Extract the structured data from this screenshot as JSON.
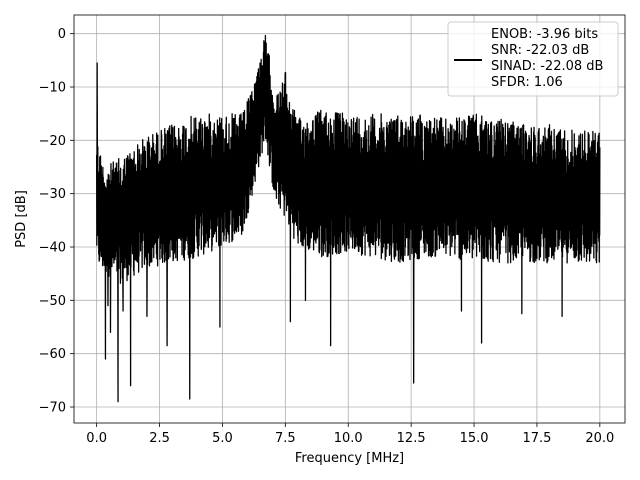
{
  "chart_data": {
    "type": "line",
    "xlabel": "Frequency [MHz]",
    "ylabel": "PSD [dB]",
    "xlim": [
      -0.9,
      21.0
    ],
    "ylim": [
      -73,
      3.5
    ],
    "x_ticks": [
      0.0,
      2.5,
      5.0,
      7.5,
      10.0,
      12.5,
      15.0,
      17.5,
      20.0
    ],
    "x_tick_labels": [
      "0.0",
      "2.5",
      "5.0",
      "7.5",
      "10.0",
      "12.5",
      "15.0",
      "17.5",
      "20.0"
    ],
    "y_ticks": [
      0,
      -10,
      -20,
      -30,
      -40,
      -50,
      -60,
      -70
    ],
    "y_tick_labels": [
      "0",
      "−10",
      "−20",
      "−30",
      "−40",
      "−50",
      "−60",
      "−70"
    ],
    "grid": true,
    "legend_position": "top-right",
    "series": [
      {
        "name": "ENOB: -3.96 bits\nSNR: -22.03 dB\nSINAD: -22.08 dB\nSFDR: 1.06",
        "color": "#000000",
        "envelope": {
          "x": [
            0.0,
            0.05,
            0.3,
            1.0,
            2.0,
            3.0,
            4.0,
            5.0,
            5.8,
            6.2,
            6.5,
            6.7,
            6.9,
            7.1,
            7.3,
            7.5,
            7.7,
            8.0,
            9.0,
            10.0,
            11.0,
            12.0,
            13.0,
            14.0,
            15.0,
            16.0,
            17.0,
            18.0,
            19.0,
            20.0
          ],
          "upper": [
            -17,
            -20,
            -25,
            -23,
            -19,
            -17,
            -15,
            -15,
            -15,
            -10,
            -4,
            0,
            -5,
            -12,
            -10,
            -7,
            -12,
            -16,
            -14,
            -15,
            -15,
            -15,
            -15,
            -16,
            -15,
            -16,
            -17,
            -17,
            -18,
            -18
          ],
          "lower": [
            -42,
            -44,
            -45,
            -47,
            -44,
            -43,
            -42,
            -40,
            -38,
            -30,
            -24,
            -20,
            -26,
            -32,
            -33,
            -35,
            -37,
            -40,
            -42,
            -41,
            -42,
            -43,
            -42,
            -42,
            -43,
            -43,
            -43,
            -43,
            -43,
            -44
          ]
        },
        "spikes": [
          {
            "x": 0.02,
            "y": -5.5
          },
          {
            "x": 0.35,
            "y": -61
          },
          {
            "x": 0.45,
            "y": -51
          },
          {
            "x": 0.55,
            "y": -56
          },
          {
            "x": 0.85,
            "y": -69
          },
          {
            "x": 1.05,
            "y": -52
          },
          {
            "x": 1.35,
            "y": -66
          },
          {
            "x": 2.0,
            "y": -53
          },
          {
            "x": 2.8,
            "y": -58.5
          },
          {
            "x": 3.7,
            "y": -68.5
          },
          {
            "x": 4.9,
            "y": -55
          },
          {
            "x": 7.7,
            "y": -54
          },
          {
            "x": 8.3,
            "y": -50
          },
          {
            "x": 9.3,
            "y": -58.5
          },
          {
            "x": 12.6,
            "y": -65.5
          },
          {
            "x": 14.5,
            "y": -52
          },
          {
            "x": 15.3,
            "y": -58
          },
          {
            "x": 16.9,
            "y": -52.5
          },
          {
            "x": 18.5,
            "y": -53
          }
        ]
      }
    ]
  }
}
